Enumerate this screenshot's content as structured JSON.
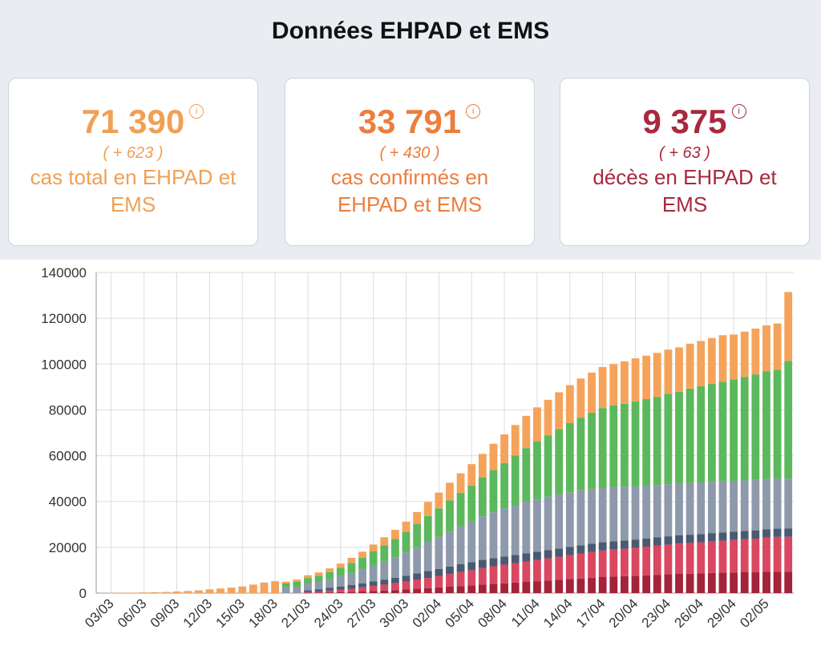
{
  "title": "Données EHPAD et EMS",
  "cards": [
    {
      "value": "71 390",
      "delta": "( + 623 )",
      "label": "cas total en EHPAD et EMS",
      "color": "#f0a055",
      "icon": "info-icon"
    },
    {
      "value": "33 791",
      "delta": "( + 430 )",
      "label": "cas confirmés en EHPAD et EMS",
      "color": "#ec7e3d",
      "icon": "info-icon"
    },
    {
      "value": "9 375",
      "delta": "( + 63 )",
      "label": "décès en EHPAD et EMS",
      "color": "#a8293e",
      "icon": "info-icon"
    }
  ],
  "chart_data": {
    "type": "bar",
    "stacked": true,
    "ylim": [
      0,
      140000
    ],
    "yticks": [
      "0",
      "20000",
      "40000",
      "60000",
      "80000",
      "100000",
      "120000",
      "140000"
    ],
    "grid": true,
    "legend": "none",
    "categories": [
      "03/03",
      "04/03",
      "05/03",
      "06/03",
      "07/03",
      "08/03",
      "09/03",
      "10/03",
      "11/03",
      "12/03",
      "13/03",
      "14/03",
      "15/03",
      "16/03",
      "17/03",
      "18/03",
      "19/03",
      "20/03",
      "21/03",
      "22/03",
      "23/03",
      "24/03",
      "25/03",
      "26/03",
      "27/03",
      "28/03",
      "29/03",
      "30/03",
      "31/03",
      "01/04",
      "02/04",
      "03/04",
      "04/04",
      "05/04",
      "06/04",
      "07/04",
      "08/04",
      "09/04",
      "10/04",
      "11/04",
      "12/04",
      "13/04",
      "14/04",
      "15/04",
      "16/04",
      "17/04",
      "18/04",
      "19/04",
      "20/04",
      "21/04",
      "22/04",
      "23/04",
      "24/04",
      "25/04",
      "26/04",
      "27/04",
      "28/04",
      "29/04",
      "30/04",
      "01/05",
      "02/05",
      "03/05",
      "04/05"
    ],
    "xtick_labels": [
      "03/03",
      "06/03",
      "09/03",
      "12/03",
      "15/03",
      "18/03",
      "21/03",
      "24/03",
      "27/03",
      "30/03",
      "02/04",
      "05/04",
      "08/04",
      "11/04",
      "14/04",
      "17/04",
      "20/04",
      "23/04",
      "26/04",
      "29/04",
      "02/05"
    ],
    "series": [
      {
        "color": "#a2233a",
        "values": [
          0,
          0,
          0,
          0,
          0,
          0,
          0,
          0,
          0,
          0,
          0,
          0,
          0,
          0,
          0,
          0,
          0,
          0,
          100,
          200,
          300,
          400,
          500,
          700,
          900,
          1100,
          1300,
          1600,
          1900,
          2200,
          2500,
          2800,
          3100,
          3400,
          3700,
          4000,
          4300,
          4600,
          4900,
          5200,
          5500,
          5800,
          6100,
          6400,
          6700,
          7000,
          7200,
          7400,
          7600,
          7800,
          8000,
          8200,
          8400,
          8500,
          8600,
          8800,
          8900,
          9000,
          9100,
          9200,
          9300,
          9350,
          9375
        ]
      },
      {
        "color": "#d94860",
        "values": [
          0,
          0,
          0,
          0,
          0,
          0,
          0,
          0,
          0,
          0,
          0,
          0,
          0,
          0,
          0,
          0,
          0,
          0,
          300,
          500,
          800,
          1100,
          1400,
          1800,
          2200,
          2600,
          3000,
          3400,
          3900,
          4400,
          4900,
          5500,
          6100,
          6600,
          7200,
          7700,
          8100,
          8500,
          8900,
          9300,
          9700,
          10100,
          10500,
          10900,
          11300,
          11600,
          11800,
          12000,
          12200,
          12500,
          12800,
          13000,
          13200,
          13400,
          13600,
          13800,
          14000,
          14200,
          14400,
          14600,
          15000,
          15200,
          15200
        ]
      },
      {
        "color": "#4a5a72",
        "values": [
          0,
          0,
          0,
          0,
          0,
          0,
          0,
          0,
          0,
          0,
          0,
          0,
          0,
          0,
          0,
          0,
          0,
          0,
          800,
          1000,
          1200,
          1400,
          1600,
          1800,
          2000,
          2200,
          2400,
          2600,
          2800,
          3000,
          3200,
          3300,
          3400,
          3500,
          3600,
          3600,
          3600,
          3600,
          3600,
          3600,
          3600,
          3600,
          3600,
          3600,
          3600,
          3600,
          3600,
          3600,
          3600,
          3600,
          3600,
          3600,
          3600,
          3600,
          3600,
          3600,
          3600,
          3600,
          3600,
          3600,
          3600,
          3600,
          3600
        ]
      },
      {
        "color": "#8e9aab",
        "values": [
          0,
          0,
          0,
          0,
          0,
          0,
          0,
          0,
          0,
          0,
          0,
          0,
          0,
          0,
          0,
          0,
          2500,
          2800,
          3000,
          3200,
          3800,
          4500,
          5200,
          6000,
          7000,
          8000,
          9000,
          10200,
          11500,
          12800,
          14000,
          15300,
          16500,
          17800,
          19000,
          20000,
          21000,
          21800,
          22500,
          23000,
          23300,
          23600,
          23800,
          24000,
          24000,
          24000,
          23800,
          23500,
          23200,
          23000,
          22800,
          22700,
          22600,
          22500,
          22500,
          22400,
          22300,
          22200,
          22100,
          22000,
          22000,
          21900,
          21800
        ]
      },
      {
        "color": "#5cb85c",
        "values": [
          0,
          0,
          0,
          0,
          0,
          0,
          0,
          0,
          0,
          0,
          0,
          0,
          0,
          0,
          0,
          0,
          1700,
          2100,
          2400,
          2700,
          3100,
          3700,
          4500,
          5200,
          6100,
          7000,
          7900,
          8800,
          10000,
          11300,
          12400,
          13600,
          14700,
          15700,
          17000,
          18400,
          19800,
          21600,
          23400,
          25200,
          26800,
          28500,
          30200,
          31700,
          33200,
          34600,
          35500,
          36200,
          37100,
          37800,
          38500,
          39500,
          40100,
          41300,
          42000,
          42800,
          43500,
          44300,
          45200,
          46100,
          47000,
          47500,
          51400
        ]
      },
      {
        "color": "#f5a35a",
        "values": [
          100,
          150,
          200,
          300,
          400,
          500,
          700,
          900,
          1200,
          1600,
          2000,
          2400,
          2900,
          3700,
          4600,
          5200,
          800,
          1000,
          1200,
          1400,
          1600,
          1800,
          2200,
          2600,
          3000,
          3500,
          4000,
          4600,
          5300,
          6100,
          6900,
          7700,
          8500,
          9300,
          10300,
          11500,
          12500,
          13300,
          14100,
          14800,
          15500,
          16100,
          16600,
          17100,
          17500,
          17900,
          18100,
          18500,
          18800,
          19000,
          19200,
          19300,
          19400,
          19600,
          19800,
          20000,
          20300,
          19600,
          19800,
          20000,
          20000,
          20200,
          30100
        ]
      }
    ]
  }
}
